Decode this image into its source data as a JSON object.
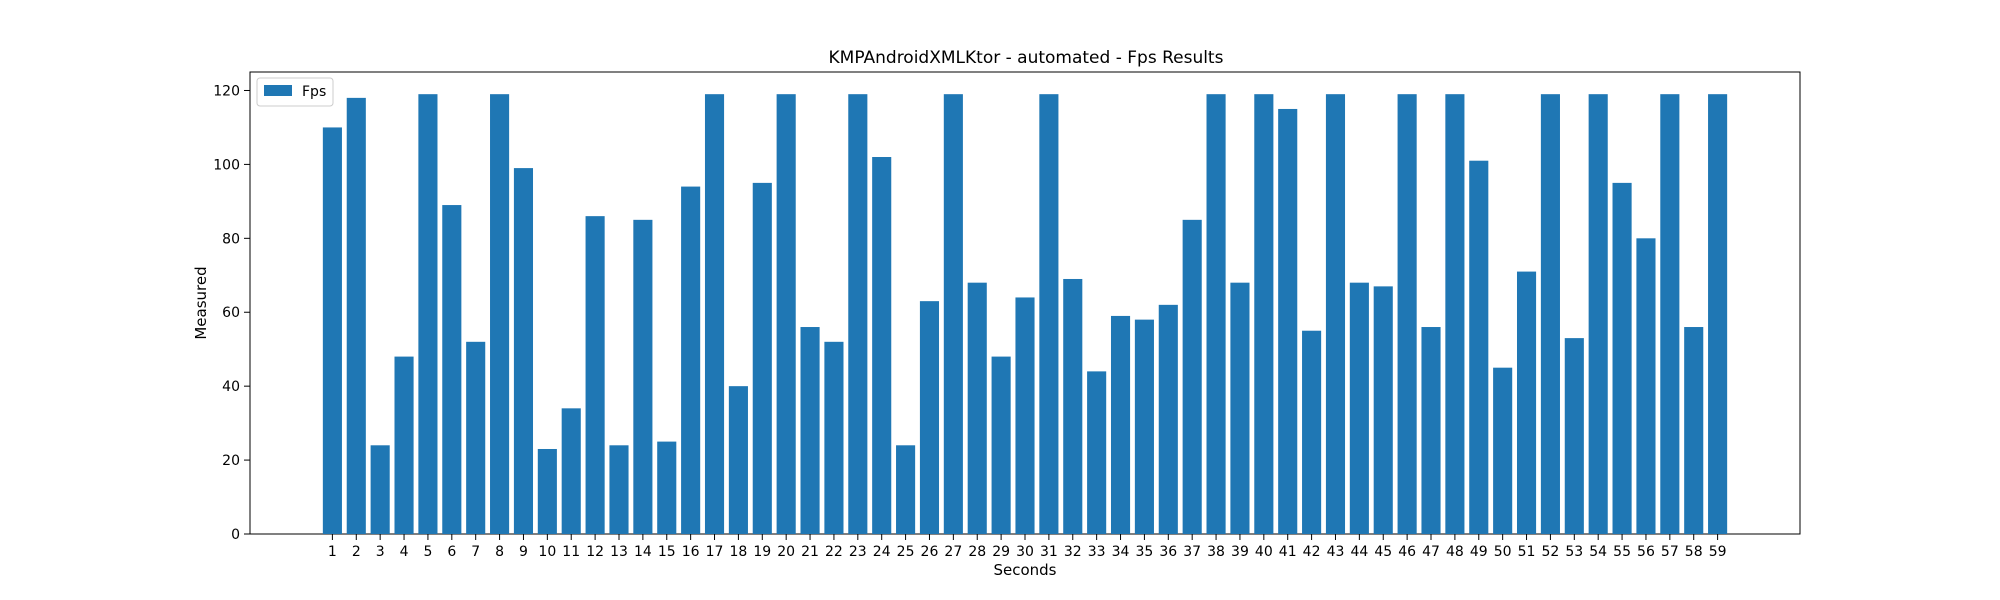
{
  "chart_data": {
    "type": "bar",
    "title": "KMPAndroidXMLKtor - automated - Fps Results",
    "xlabel": "Seconds",
    "ylabel": "Measured",
    "ylim": [
      0,
      125
    ],
    "yticks": [
      0,
      20,
      40,
      60,
      80,
      100,
      120
    ],
    "legend_placement": "top-left",
    "grid": false,
    "color": "#1f77b4",
    "categories": [
      "1",
      "2",
      "3",
      "4",
      "5",
      "6",
      "7",
      "8",
      "9",
      "10",
      "11",
      "12",
      "13",
      "14",
      "15",
      "16",
      "17",
      "18",
      "19",
      "20",
      "21",
      "22",
      "23",
      "24",
      "25",
      "26",
      "27",
      "28",
      "29",
      "30",
      "31",
      "32",
      "33",
      "34",
      "35",
      "36",
      "37",
      "38",
      "39",
      "40",
      "41",
      "42",
      "43",
      "44",
      "45",
      "46",
      "47",
      "48",
      "49",
      "50",
      "51",
      "52",
      "53",
      "54",
      "55",
      "56",
      "57",
      "58",
      "59"
    ],
    "series": [
      {
        "name": "Fps",
        "values": [
          110,
          118,
          24,
          48,
          119,
          89,
          52,
          119,
          99,
          23,
          34,
          86,
          24,
          85,
          25,
          94,
          119,
          40,
          95,
          119,
          56,
          52,
          119,
          102,
          24,
          63,
          119,
          68,
          48,
          64,
          119,
          69,
          44,
          59,
          58,
          62,
          85,
          119,
          68,
          119,
          115,
          55,
          119,
          68,
          67,
          119,
          56,
          119,
          101,
          45,
          71,
          119,
          53,
          119,
          95,
          80,
          119,
          56,
          119
        ]
      }
    ]
  }
}
